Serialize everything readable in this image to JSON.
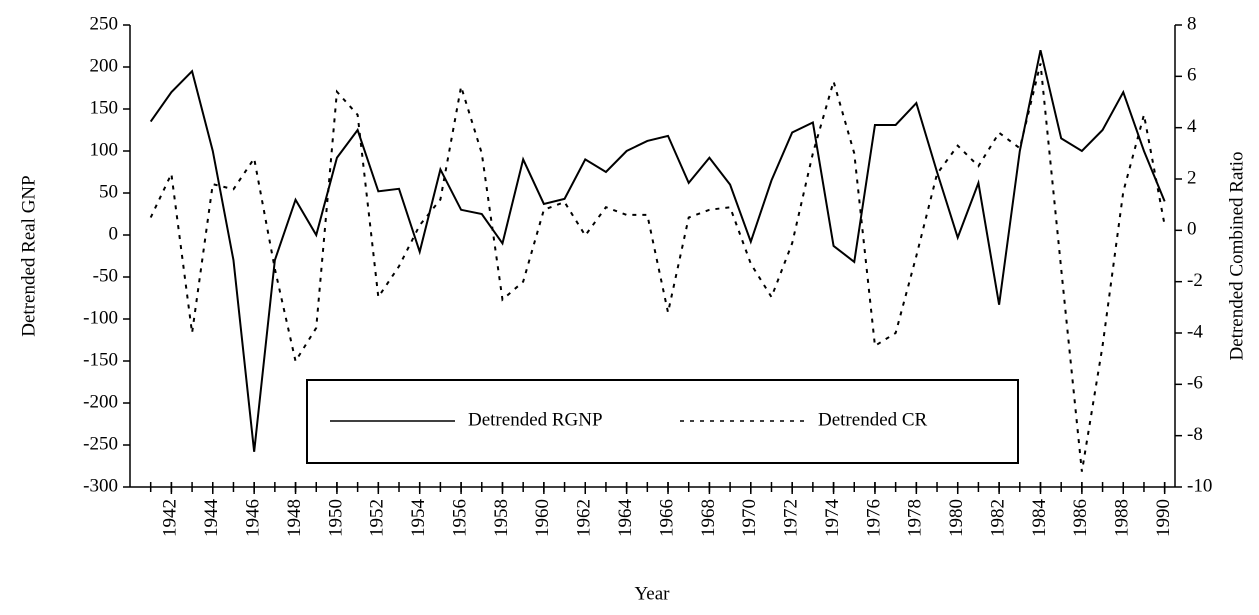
{
  "chart_data": {
    "type": "line",
    "x": [
      1941,
      1942,
      1943,
      1944,
      1945,
      1946,
      1947,
      1948,
      1949,
      1950,
      1951,
      1952,
      1953,
      1954,
      1955,
      1956,
      1957,
      1958,
      1959,
      1960,
      1961,
      1962,
      1963,
      1964,
      1965,
      1966,
      1967,
      1968,
      1969,
      1970,
      1971,
      1972,
      1973,
      1974,
      1975,
      1976,
      1977,
      1978,
      1979,
      1980,
      1981,
      1982,
      1983,
      1984,
      1985,
      1986,
      1987,
      1988,
      1989,
      1990
    ],
    "series": [
      {
        "name": "Detrended RGNP",
        "color": "#000000",
        "dash": "solid",
        "values": [
          135,
          170,
          195,
          100,
          -30,
          -258,
          -30,
          42,
          0,
          92,
          125,
          52,
          55,
          -20,
          78,
          30,
          25,
          -10,
          90,
          37,
          43,
          90,
          75,
          100,
          112,
          118,
          62,
          92,
          60,
          -8,
          65,
          122,
          134,
          -13,
          -32,
          131,
          131,
          157,
          75,
          -3,
          62,
          -83,
          100,
          220,
          115,
          100,
          125,
          170,
          100,
          40
        ]
      },
      {
        "name": "Detrended CR",
        "color": "#000000",
        "dash": "dotted",
        "axis": "y2",
        "values": [
          0.5,
          2.2,
          -4.0,
          1.8,
          1.6,
          2.8,
          -1.5,
          -5.1,
          -3.8,
          5.4,
          4.5,
          -2.6,
          -1.4,
          0.2,
          1.2,
          5.6,
          3.0,
          -2.7,
          -2.0,
          0.8,
          1.1,
          -0.2,
          0.9,
          0.6,
          0.6,
          -3.2,
          0.5,
          0.8,
          0.9,
          -1.3,
          -2.6,
          -0.5,
          3.0,
          5.8,
          3.0,
          -4.5,
          -4.0,
          -1.0,
          2.2,
          3.3,
          2.5,
          3.8,
          3.2,
          6.5,
          -1.5,
          -9.4,
          -4.5,
          1.5,
          4.5,
          0.2
        ]
      }
    ],
    "xlabel": "Year",
    "ylabel": "Detrended Real GNP",
    "y2label": "Detrended Combined Ratio",
    "xlim": [
      1940,
      1990.5
    ],
    "xticks": [
      1942,
      1944,
      1946,
      1948,
      1950,
      1952,
      1954,
      1956,
      1958,
      1960,
      1962,
      1964,
      1966,
      1968,
      1970,
      1972,
      1974,
      1976,
      1978,
      1980,
      1982,
      1984,
      1986,
      1988,
      1990
    ],
    "ylim": [
      -300,
      250
    ],
    "yticks": [
      -300,
      -250,
      -200,
      -150,
      -100,
      -50,
      0,
      50,
      100,
      150,
      200,
      250
    ],
    "y2lim": [
      -10,
      8
    ],
    "y2ticks": [
      -10,
      -8,
      -6,
      -4,
      -2,
      0,
      2,
      4,
      6,
      8
    ],
    "grid": false,
    "legend": "bottom-center"
  }
}
